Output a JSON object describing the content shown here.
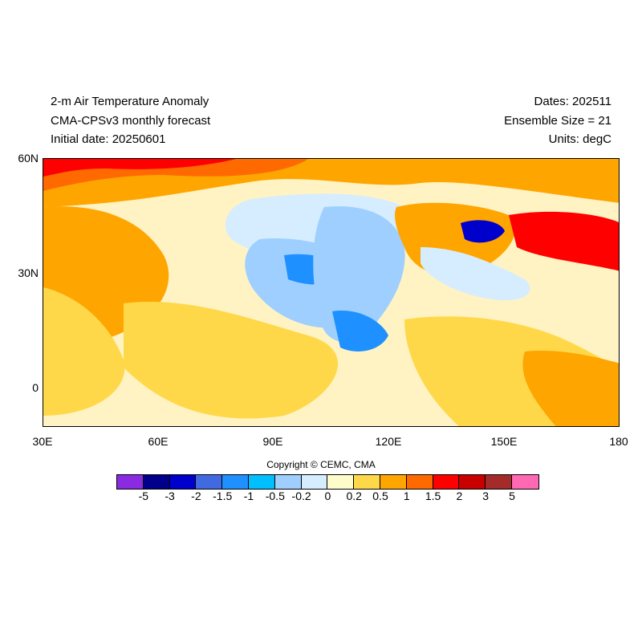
{
  "header": {
    "title": "2-m Air Temperature Anomaly",
    "model": "CMA-CPSv3 monthly forecast",
    "initial": "Initial date: 20250601",
    "dates": "Dates: 202511",
    "ensemble": "Ensemble Size = 21",
    "units": "Units: degC"
  },
  "axes": {
    "y_labels": [
      "60N",
      "30N",
      "0"
    ],
    "x_labels": [
      "30E",
      "60E",
      "90E",
      "120E",
      "150E",
      "180"
    ]
  },
  "footer": {
    "copyright": "Copyright © CEMC, CMA"
  },
  "colorbar": {
    "colors": [
      "#8a2be2",
      "#00008b",
      "#0000cd",
      "#4169e1",
      "#1e90ff",
      "#00bfff",
      "#9fcfff",
      "#d6ecff",
      "#fffccc",
      "#ffd84a",
      "#ffa500",
      "#ff6a00",
      "#ff0000",
      "#c80000",
      "#a52a2a",
      "#ff69b4"
    ],
    "labels": [
      "-5",
      "-3",
      "-2",
      "-1.5",
      "-1",
      "-0.5",
      "-0.2",
      "0",
      "0.2",
      "0.5",
      "1",
      "1.5",
      "2",
      "3",
      "5"
    ]
  }
}
